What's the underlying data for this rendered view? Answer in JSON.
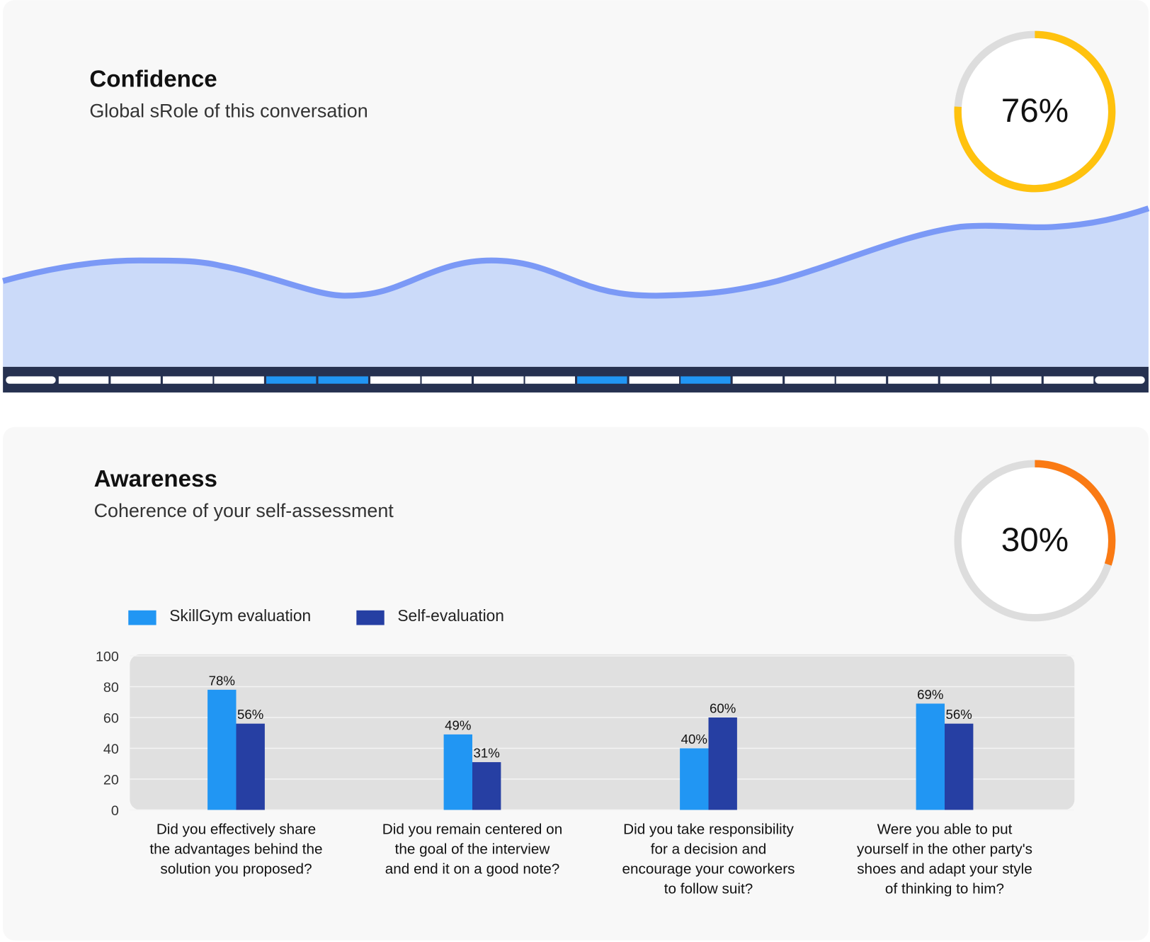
{
  "cards": [
    {
      "title": "Confidence",
      "subtitle": "Global sRole of this conversation"
    },
    {
      "title": "Awareness",
      "subtitle": "Coherence of your self-assessment"
    }
  ],
  "chart_data": [
    {
      "type": "gauge",
      "value": 76,
      "value_label": "76%",
      "color": "#ffc20e",
      "track_color": "#dddddd"
    },
    {
      "type": "gauge",
      "value": 30,
      "value_label": "30%",
      "color": "#fa7a14",
      "track_color": "#dddddd"
    },
    {
      "type": "bar",
      "categories": [
        "Did you effectively share the advantages behind the solution you proposed?",
        "Did you remain centered on the goal of the interview and end it on a good note?",
        "Did you take responsibility for a decision and encourage your coworkers to follow suit?",
        "Were you able to put yourself in the other party's shoes and adapt your style of thinking to him?"
      ],
      "series": [
        {
          "name": "SkillGym evaluation",
          "color": "#2196f3",
          "values": [
            78,
            49,
            40,
            69
          ],
          "value_labels": [
            "78%",
            "49%",
            "40%",
            "69%"
          ]
        },
        {
          "name": "Self-evaluation",
          "color": "#263fa3",
          "values": [
            56,
            31,
            60,
            56
          ],
          "value_labels": [
            "56%",
            "31%",
            "60%",
            "56%"
          ]
        }
      ],
      "ylim": [
        0,
        100
      ],
      "yticks": [
        0,
        20,
        40,
        60,
        80,
        100
      ],
      "grid": true,
      "legend": "top-left"
    }
  ]
}
